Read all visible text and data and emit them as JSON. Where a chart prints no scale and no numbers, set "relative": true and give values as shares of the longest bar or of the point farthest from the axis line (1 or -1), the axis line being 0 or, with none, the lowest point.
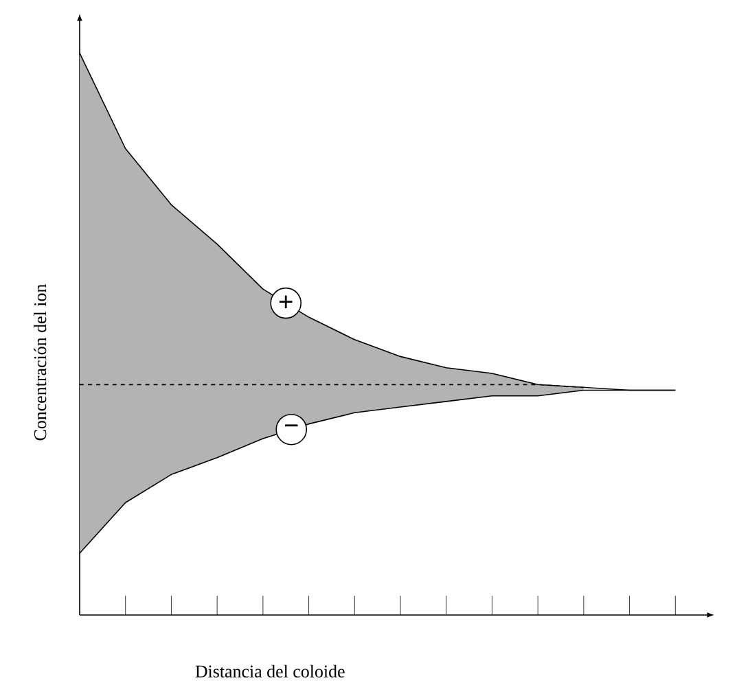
{
  "chart_data": {
    "type": "line",
    "relative": true,
    "tick_labels": false,
    "xlabel": "Distancia del coloide",
    "ylabel": "Concentración del ion",
    "categories": [
      null,
      null,
      null,
      null,
      null,
      null,
      null,
      null,
      null,
      null,
      null,
      null,
      null,
      null
    ],
    "series": [
      {
        "type": "line",
        "line_style": "solid",
        "color": "#000000",
        "values": [
          1,
          0.83,
          0.73,
          0.66,
          0.58,
          0.53,
          0.49,
          0.46,
          0.44,
          0.43,
          0.41,
          0.405,
          0.4,
          0.4
        ]
      },
      {
        "type": "line",
        "line_style": "solid",
        "color": "#000000",
        "values": [
          0.11,
          0.2,
          0.25,
          0.28,
          0.314,
          0.34,
          0.36,
          0.37,
          0.38,
          0.39,
          0.39,
          0.4,
          0.4,
          0.4
        ]
      },
      {
        "type": "line",
        "line_style": "dashed",
        "color": "#000000",
        "values": [
          0.41,
          0.41,
          0.41,
          0.41,
          0.41,
          0.41,
          0.41,
          0.41,
          0.41,
          0.41,
          0.41,
          0.405,
          null,
          null
        ],
        "upper": [
          1,
          0.83,
          0.73,
          0.66,
          0.58,
          0.53,
          0.49,
          0.46,
          0.44,
          0.43,
          0.41,
          0.405,
          null,
          null
        ],
        "lower": [
          0.11,
          0.2,
          0.25,
          0.28,
          0.314,
          0.34,
          0.36,
          0.37,
          0.38,
          0.39,
          0.39,
          0.4,
          null,
          null
        ]
      }
    ],
    "annotations": [
      "+",
      "−"
    ]
  }
}
